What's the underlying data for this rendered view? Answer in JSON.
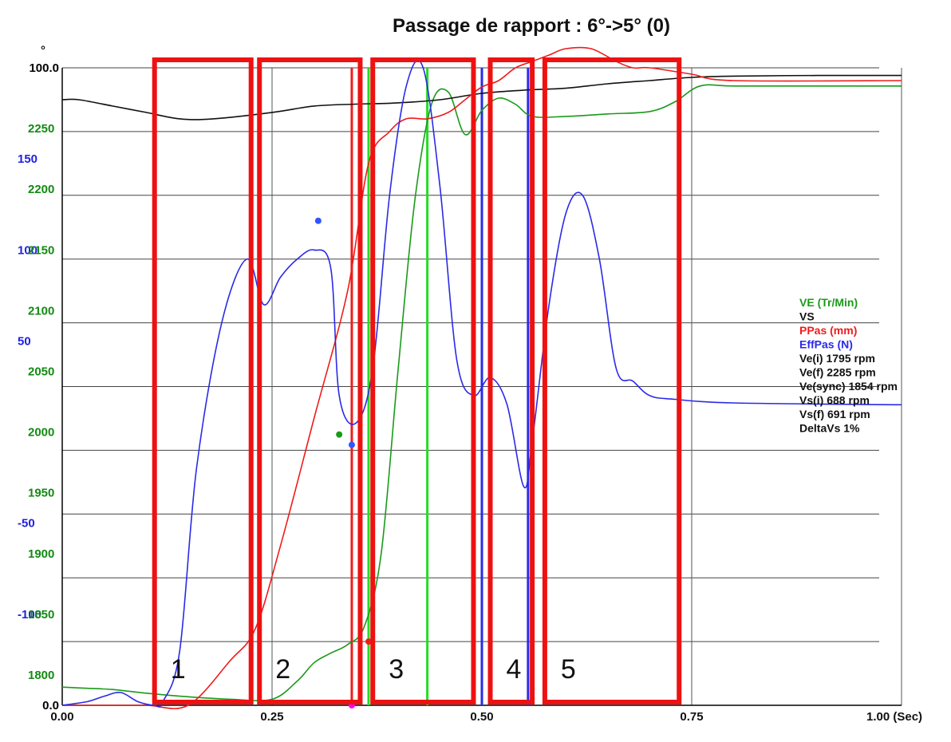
{
  "chart_data": {
    "type": "line",
    "title": "Passage de rapport : 6°->5° (0)",
    "x_axis": {
      "label": "(Sec)",
      "range": [
        0,
        1
      ],
      "ticks": [
        0,
        0.25,
        0.5,
        0.75,
        1.0
      ],
      "tick_labels": [
        "0.00",
        "0.25",
        "0.50",
        "0.75",
        "1.00 (Sec)"
      ]
    },
    "y_axes": {
      "ppas": {
        "color": "#000000",
        "range": [
          0,
          100
        ],
        "tick_labels": [
          {
            "v": 0,
            "t": "0.0"
          },
          {
            "v": 100,
            "t": "100.0"
          }
        ],
        "unit_mark": "°"
      },
      "effpas": {
        "color": "#2020e0",
        "range": [
          -150,
          200
        ],
        "tick_labels": [
          {
            "v": 150,
            "t": "150"
          },
          {
            "v": 100,
            "t": "100"
          },
          {
            "v": 50,
            "t": "50"
          },
          {
            "v": -50,
            "t": "-50"
          },
          {
            "v": -100,
            "t": "-100"
          }
        ]
      },
      "ve": {
        "color": "#128a12",
        "range": [
          1775,
          2300
        ],
        "tick_labels": [
          {
            "v": 2250,
            "t": "2250"
          },
          {
            "v": 2200,
            "t": "2200"
          },
          {
            "v": 2150,
            "t": "2150"
          },
          {
            "v": 2100,
            "t": "2100"
          },
          {
            "v": 2050,
            "t": "2050"
          },
          {
            "v": 2000,
            "t": "2000"
          },
          {
            "v": 1950,
            "t": "1950"
          },
          {
            "v": 1900,
            "t": "1900"
          },
          {
            "v": 1850,
            "t": "1850"
          },
          {
            "v": 1800,
            "t": "1800"
          }
        ]
      }
    },
    "grid": true,
    "series": [
      {
        "name": "VE (Tr/Min)",
        "color": "#1a9a1a",
        "axis": "ve",
        "x": [
          0,
          0.03,
          0.06,
          0.1,
          0.15,
          0.2,
          0.25,
          0.28,
          0.3,
          0.32,
          0.34,
          0.36,
          0.38,
          0.4,
          0.42,
          0.44,
          0.46,
          0.48,
          0.5,
          0.52,
          0.54,
          0.56,
          0.6,
          0.65,
          0.7,
          0.73,
          0.76,
          0.8,
          0.9,
          1.0
        ],
        "y": [
          1790,
          1789,
          1788,
          1785,
          1782,
          1780,
          1780,
          1795,
          1810,
          1818,
          1825,
          1840,
          1900,
          2050,
          2190,
          2270,
          2280,
          2245,
          2265,
          2275,
          2270,
          2260,
          2260,
          2262,
          2264,
          2272,
          2285,
          2285,
          2285,
          2285
        ]
      },
      {
        "name": "VS",
        "color": "#111111",
        "axis": "ppas",
        "x": [
          0,
          0.02,
          0.06,
          0.1,
          0.14,
          0.18,
          0.25,
          0.3,
          0.35,
          0.4,
          0.45,
          0.5,
          0.55,
          0.6,
          0.65,
          0.7,
          0.75,
          0.8,
          0.9,
          1.0
        ],
        "y": [
          95,
          95,
          94,
          93,
          92,
          92,
          93,
          94,
          94.3,
          94.5,
          95,
          96,
          96.5,
          96.8,
          97.5,
          98,
          98.5,
          98.7,
          98.8,
          98.8
        ]
      },
      {
        "name": "PPas (mm)",
        "color": "#ee1c1c",
        "axis": "ppas",
        "x": [
          0,
          0.05,
          0.1,
          0.15,
          0.2,
          0.23,
          0.26,
          0.3,
          0.34,
          0.365,
          0.39,
          0.41,
          0.435,
          0.46,
          0.48,
          0.5,
          0.52,
          0.54,
          0.56,
          0.58,
          0.6,
          0.63,
          0.66,
          0.68,
          0.7,
          0.75,
          0.8,
          1.0
        ],
        "y": [
          0,
          0,
          0,
          0,
          7,
          12,
          25,
          45,
          65,
          85,
          90,
          92,
          92,
          93,
          95,
          97,
          98,
          100,
          101,
          102,
          103,
          103,
          101,
          100,
          100,
          99,
          98,
          98
        ]
      },
      {
        "name": "EffPas (N)",
        "color": "#2a2ae8",
        "axis": "effpas",
        "x": [
          0,
          0.03,
          0.05,
          0.07,
          0.09,
          0.11,
          0.12,
          0.14,
          0.16,
          0.19,
          0.22,
          0.24,
          0.26,
          0.28,
          0.3,
          0.32,
          0.33,
          0.35,
          0.37,
          0.39,
          0.41,
          0.43,
          0.45,
          0.47,
          0.49,
          0.51,
          0.53,
          0.55,
          0.56,
          0.58,
          0.6,
          0.62,
          0.64,
          0.66,
          0.68,
          0.7,
          0.73,
          0.8,
          1.0
        ],
        "y": [
          -150,
          -148,
          -145,
          -143,
          -148,
          -150,
          -148,
          -120,
          -20,
          60,
          95,
          70,
          85,
          95,
          100,
          90,
          20,
          5,
          35,
          130,
          190,
          200,
          135,
          40,
          20,
          30,
          15,
          -30,
          -5,
          70,
          120,
          130,
          95,
          35,
          28,
          20,
          18,
          16,
          15
        ]
      }
    ],
    "markers": [
      {
        "series": "EffPas (N)",
        "color": "#3355ff",
        "x": 0.305,
        "y": 116
      },
      {
        "series": "EffPas (N)",
        "color": "#3355ff",
        "x": 0.345,
        "y": -7
      },
      {
        "series": "PPas (mm)",
        "color": "#ff00ff",
        "x": 0.345,
        "y": 0
      },
      {
        "series": "PPas (mm)",
        "color": "#ee1c1c",
        "x": 0.365,
        "y": 10
      },
      {
        "series": "VE (Tr/Min)",
        "color": "#1a9a1a",
        "x": 0.33,
        "y": 1998
      }
    ],
    "vertical_lines": [
      {
        "x": 0.345,
        "color": "#ee1c1c"
      },
      {
        "x": 0.365,
        "color": "#22dd22"
      },
      {
        "x": 0.435,
        "color": "#22dd22"
      },
      {
        "x": 0.5,
        "color": "#2a2ae8"
      },
      {
        "x": 0.555,
        "color": "#2a2ae8"
      }
    ],
    "legend": {
      "position": "right",
      "entries": [
        {
          "text": "VE (Tr/Min)",
          "color": "#1a9a1a"
        },
        {
          "text": "VS",
          "color": "#111111"
        },
        {
          "text": "PPas (mm)",
          "color": "#ee1c1c"
        },
        {
          "text": "EffPas (N)",
          "color": "#2a2ae8"
        },
        {
          "text": "Ve(i)    1795 rpm",
          "color": "#111111"
        },
        {
          "text": "Ve(f)    2285 rpm",
          "color": "#111111"
        },
        {
          "text": "Ve(sync)     1854 rpm",
          "color": "#111111"
        },
        {
          "text": "Vs(i)     688 rpm",
          "color": "#111111"
        },
        {
          "text": "Vs(f)     691 rpm",
          "color": "#111111"
        },
        {
          "text": "DeltaVs        1%",
          "color": "#111111"
        }
      ]
    },
    "annotation_regions": [
      {
        "label": "1",
        "x0": 0.11,
        "x1": 0.225
      },
      {
        "label": "2",
        "x0": 0.235,
        "x1": 0.355
      },
      {
        "label": "3",
        "x0": 0.37,
        "x1": 0.49
      },
      {
        "label": "4",
        "x0": 0.51,
        "x1": 0.56
      },
      {
        "label": "5",
        "x0": 0.575,
        "x1": 0.735
      }
    ],
    "region_color": "#ee1111"
  }
}
